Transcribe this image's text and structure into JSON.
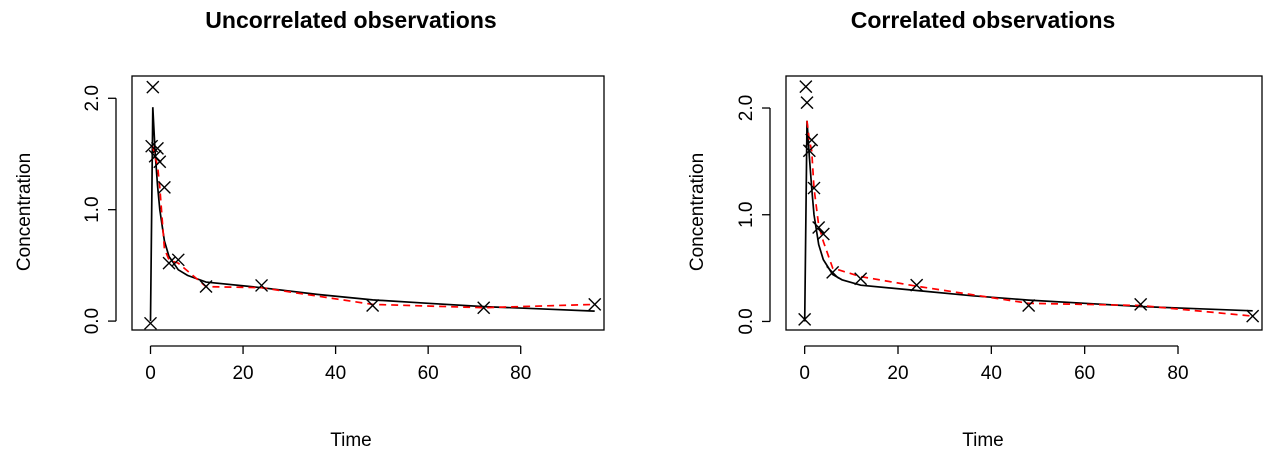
{
  "chart_data": [
    {
      "type": "line",
      "title": "Uncorrelated observations",
      "xlabel": "Time",
      "ylabel": "Concentration",
      "xlim": [
        -4,
        98
      ],
      "ylim": [
        -0.08,
        2.2
      ],
      "x_ticks": [
        0,
        20,
        40,
        60,
        80
      ],
      "x_tick_labels": [
        "0",
        "20",
        "40",
        "60",
        "80"
      ],
      "y_ticks": [
        0.0,
        1.0,
        2.0
      ],
      "y_tick_labels": [
        "0.0",
        "1.0",
        "2.0"
      ],
      "observations": {
        "x": [
          0,
          0.25,
          0.5,
          1,
          1.5,
          2,
          3,
          4,
          6,
          12,
          24,
          48,
          72,
          96
        ],
        "y": [
          -0.02,
          1.57,
          2.1,
          1.48,
          1.55,
          1.43,
          1.2,
          0.52,
          0.55,
          0.31,
          0.32,
          0.14,
          0.12,
          0.15
        ]
      },
      "series": [
        {
          "color": "#000000",
          "dash": "solid",
          "x": [
            0,
            0.5,
            1,
            1.5,
            2,
            3,
            4,
            6,
            8,
            12,
            24,
            36,
            48,
            60,
            72,
            84,
            96
          ],
          "y": [
            0,
            1.92,
            1.52,
            1.22,
            1.0,
            0.72,
            0.58,
            0.46,
            0.41,
            0.35,
            0.3,
            0.24,
            0.19,
            0.16,
            0.13,
            0.11,
            0.09
          ]
        },
        {
          "color": "#ff0000",
          "dash": "dashed",
          "x": [
            0.5,
            1,
            1.5,
            2,
            3,
            4,
            6,
            12,
            24,
            48,
            72,
            96
          ],
          "y": [
            1.57,
            1.47,
            1.4,
            1.2,
            0.65,
            0.55,
            0.52,
            0.31,
            0.3,
            0.15,
            0.12,
            0.15
          ]
        }
      ]
    },
    {
      "type": "line",
      "title": "Correlated observations",
      "xlabel": "Time",
      "ylabel": "Concentration",
      "xlim": [
        -4,
        98
      ],
      "ylim": [
        -0.08,
        2.3
      ],
      "x_ticks": [
        0,
        20,
        40,
        60,
        80
      ],
      "x_tick_labels": [
        "0",
        "20",
        "40",
        "60",
        "80"
      ],
      "y_ticks": [
        0.0,
        1.0,
        2.0
      ],
      "y_tick_labels": [
        "0.0",
        "1.0",
        "2.0"
      ],
      "observations": {
        "x": [
          0,
          0.25,
          0.5,
          1,
          1.5,
          2,
          3,
          4,
          6,
          12,
          24,
          48,
          72,
          96
        ],
        "y": [
          0.02,
          2.2,
          2.05,
          1.6,
          1.7,
          1.25,
          0.88,
          0.82,
          0.46,
          0.4,
          0.34,
          0.15,
          0.16,
          0.05
        ]
      },
      "series": [
        {
          "color": "#000000",
          "dash": "solid",
          "x": [
            0,
            0.5,
            1,
            1.5,
            2,
            3,
            4,
            6,
            8,
            12,
            24,
            36,
            48,
            60,
            72,
            84,
            96
          ],
          "y": [
            0,
            1.88,
            1.55,
            1.25,
            1.0,
            0.72,
            0.58,
            0.44,
            0.39,
            0.34,
            0.29,
            0.24,
            0.2,
            0.17,
            0.14,
            0.12,
            0.1
          ]
        },
        {
          "color": "#ff0000",
          "dash": "dashed",
          "x": [
            0.5,
            1,
            1.5,
            2,
            3,
            4,
            6,
            12,
            24,
            48,
            72,
            96
          ],
          "y": [
            1.88,
            1.7,
            1.6,
            1.25,
            0.9,
            0.75,
            0.5,
            0.42,
            0.33,
            0.17,
            0.15,
            0.05
          ]
        }
      ]
    }
  ]
}
